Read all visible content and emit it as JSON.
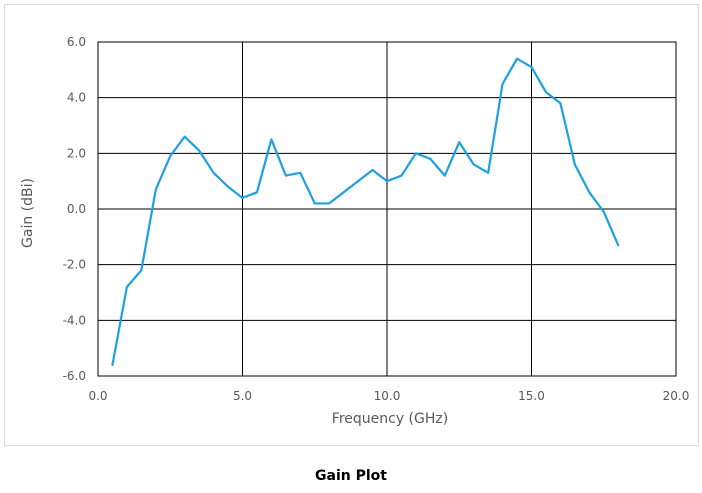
{
  "chart_data": {
    "type": "line",
    "title": "",
    "xlabel": "Frequency (GHz)",
    "ylabel": "Gain (dBi)",
    "xlim": [
      0,
      20
    ],
    "ylim": [
      -6,
      6
    ],
    "x_ticks": [
      "0.0",
      "5.0",
      "10.0",
      "15.0",
      "20.0"
    ],
    "y_ticks": [
      "6.0",
      "4.0",
      "2.0",
      "0.0",
      "-2.0",
      "-4.0",
      "-6.0"
    ],
    "grid": true,
    "legend": "none",
    "series": [
      {
        "color": "#1ba1e2",
        "x": [
          0.5,
          1.0,
          1.5,
          2.0,
          2.5,
          3.0,
          3.5,
          4.0,
          4.5,
          5.0,
          5.5,
          6.0,
          6.5,
          7.0,
          7.5,
          8.0,
          8.5,
          9.0,
          9.5,
          10.0,
          10.5,
          11.0,
          11.5,
          12.0,
          12.5,
          13.0,
          13.5,
          14.0,
          14.5,
          15.0,
          15.5,
          16.0,
          16.5,
          17.0,
          17.5,
          18.0
        ],
        "y": [
          -5.6,
          -2.8,
          -2.2,
          0.7,
          1.9,
          2.6,
          2.1,
          1.3,
          0.8,
          0.4,
          0.6,
          2.5,
          1.2,
          1.3,
          0.2,
          0.2,
          0.6,
          1.0,
          1.4,
          1.0,
          1.2,
          2.0,
          1.8,
          1.2,
          2.4,
          1.6,
          1.3,
          4.5,
          5.4,
          5.1,
          4.2,
          3.8,
          1.6,
          0.6,
          -0.1,
          -1.3
        ]
      }
    ]
  },
  "caption": "Gain Plot"
}
